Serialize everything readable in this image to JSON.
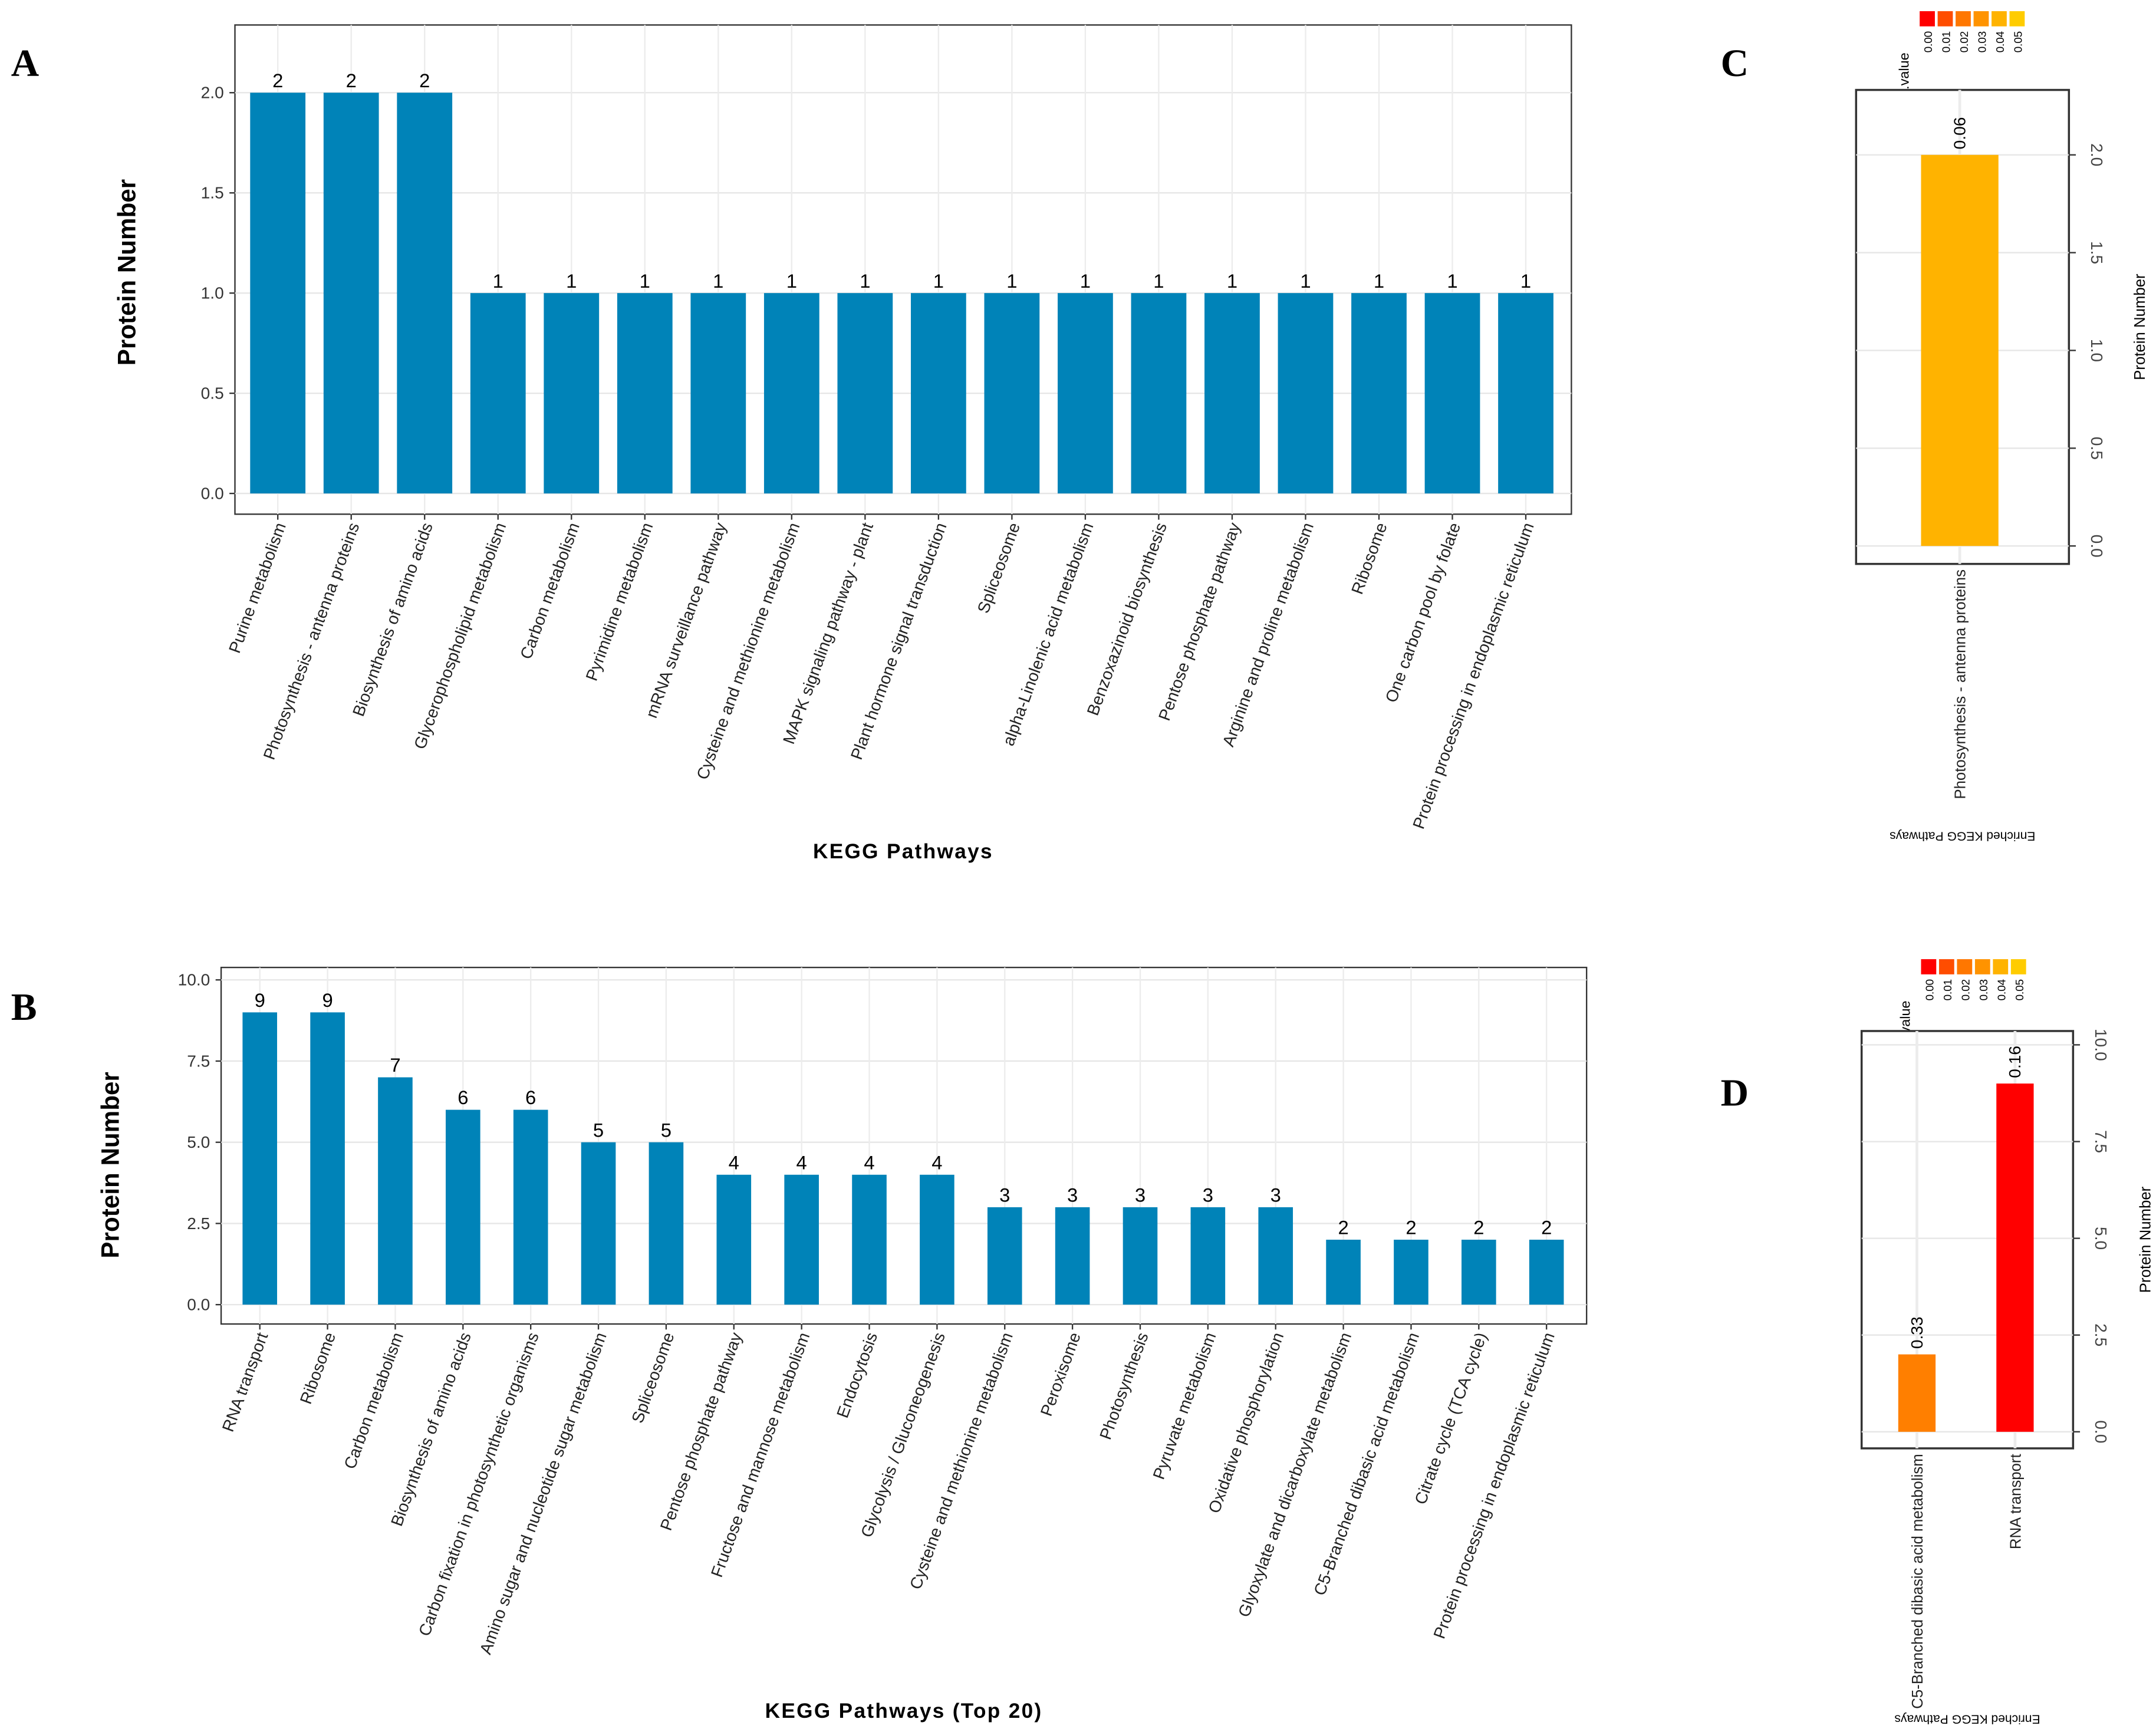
{
  "panel_labels": {
    "a": "A",
    "b": "B",
    "c": "C",
    "d": "D"
  },
  "chart_data": [
    {
      "id": "A",
      "type": "bar",
      "title": "",
      "xlabel": "KEGG Pathways",
      "ylabel": "Protein Number",
      "ylim": [
        0,
        2.2
      ],
      "yticks": [
        "0.0",
        "0.5",
        "1.0",
        "1.5",
        "2.0"
      ],
      "grid": true,
      "color": "#0083b8",
      "categories": [
        "Purine metabolism",
        "Photosynthesis - antenna proteins",
        "Biosynthesis of amino acids",
        "Glycerophospholipid metabolism",
        "Carbon metabolism",
        "Pyrimidine metabolism",
        "mRNA surveillance pathway",
        "Cysteine and methionine metabolism",
        "MAPK signaling pathway - plant",
        "Plant hormone signal transduction",
        "Spliceosome",
        "alpha-Linolenic acid metabolism",
        "Benzoxazinoid biosynthesis",
        "Pentose phosphate pathway",
        "Arginine and proline metabolism",
        "Ribosome",
        "One carbon pool by folate",
        "Protein processing in endoplasmic reticulum"
      ],
      "values": [
        2,
        2,
        2,
        1,
        1,
        1,
        1,
        1,
        1,
        1,
        1,
        1,
        1,
        1,
        1,
        1,
        1,
        1
      ]
    },
    {
      "id": "B",
      "type": "bar",
      "title": "",
      "xlabel": "KEGG Pathways (Top 20)",
      "ylabel": "Protein Number",
      "ylim": [
        0,
        10.3
      ],
      "yticks": [
        "0.0",
        "2.5",
        "5.0",
        "7.5",
        "10.0"
      ],
      "grid": true,
      "color": "#0083b8",
      "categories": [
        "RNA transport",
        "Ribosome",
        "Carbon metabolism",
        "Biosynthesis of amino acids",
        "Carbon fixation in photosynthetic organisms",
        "Amino sugar and nucleotide sugar metabolism",
        "Spliceosome",
        "Pentose phosphate pathway",
        "Fructose and mannose metabolism",
        "Endocytosis",
        "Glycolysis / Gluconeogenesis",
        "Cysteine and methionine metabolism",
        "Peroxisome",
        "Photosynthesis",
        "Pyruvate metabolism",
        "Oxidative phosphorylation",
        "Glyoxylate and dicarboxylate metabolism",
        "C5-Branched dibasic acid metabolism",
        "Citrate cycle (TCA cycle)",
        "Protein processing in endoplasmic reticulum"
      ],
      "values": [
        9,
        9,
        7,
        6,
        6,
        5,
        5,
        4,
        4,
        4,
        4,
        3,
        3,
        3,
        3,
        3,
        2,
        2,
        2,
        2
      ]
    },
    {
      "id": "C",
      "type": "bar",
      "xlabel": "Enriched KEGG Pathways",
      "ylabel": "Protein Number",
      "ylim": [
        0,
        2.2
      ],
      "yticks": [
        "0.0",
        "0.5",
        "1.0",
        "1.5",
        "2.0"
      ],
      "categories": [
        "Photosynthesis - antenna proteins"
      ],
      "values": [
        2
      ],
      "bar_labels": [
        "0.06"
      ],
      "colors": [
        "#ffb300"
      ],
      "legend": {
        "title": "p.value",
        "labels": [
          "0.00",
          "0.01",
          "0.02",
          "0.03",
          "0.04",
          "0.05"
        ],
        "colors": [
          "#ff0000",
          "#ff4d00",
          "#ff7700",
          "#ff9300",
          "#ffb300",
          "#ffcc00"
        ]
      }
    },
    {
      "id": "D",
      "type": "bar",
      "xlabel": "Enriched KEGG Pathways",
      "ylabel": "Protein Number",
      "ylim": [
        0,
        10.5
      ],
      "yticks": [
        "0.0",
        "2.5",
        "5.0",
        "7.5",
        "10.0"
      ],
      "categories": [
        "C5-Branched dibasic acid metabolism",
        "RNA transport"
      ],
      "values": [
        2,
        9
      ],
      "bar_labels": [
        "0.33",
        "0.16"
      ],
      "colors": [
        "#ff7f00",
        "#ff0000"
      ],
      "legend": {
        "title": "p.value",
        "labels": [
          "0.00",
          "0.01",
          "0.02",
          "0.03",
          "0.04",
          "0.05"
        ],
        "colors": [
          "#ff0000",
          "#ff4d00",
          "#ff7700",
          "#ff9300",
          "#ffb300",
          "#ffcc00"
        ]
      }
    }
  ]
}
